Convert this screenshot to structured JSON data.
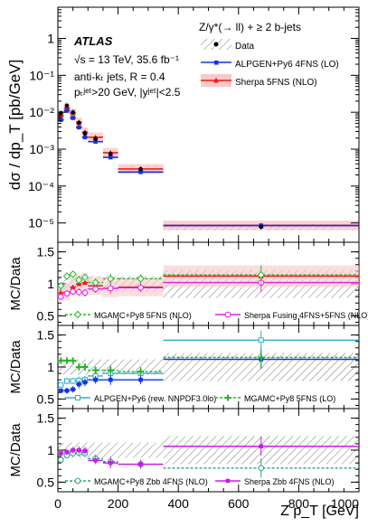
{
  "chart_data": [
    {
      "type": "scatter",
      "panel": "main",
      "ylabel": "dσ / dp_T [pb/GeV]",
      "yscale": "log",
      "ylim": [
        3e-06,
        7
      ],
      "xlim": [
        0,
        1000
      ],
      "yticks": [
        {
          "v": 1,
          "label": "1"
        },
        {
          "v": 0.1,
          "label": "10⁻¹"
        },
        {
          "v": 0.01,
          "label": "10⁻²"
        },
        {
          "v": 0.001,
          "label": "10⁻³"
        },
        {
          "v": 0.0001,
          "label": "10⁻⁴"
        },
        {
          "v": 1e-05,
          "label": "10⁻⁵"
        }
      ],
      "bins": [
        [
          0,
          20
        ],
        [
          20,
          40
        ],
        [
          40,
          60
        ],
        [
          60,
          80
        ],
        [
          80,
          100
        ],
        [
          100,
          150
        ],
        [
          150,
          200
        ],
        [
          200,
          350
        ],
        [
          350,
          1000
        ]
      ],
      "annotations": {
        "experiment": "ATLAS",
        "energy": "√s = 13 TeV, 35.6 fb⁻¹",
        "jets": "anti-kₜ jets, R = 0.4",
        "cuts": "pₜʲᵉᵗ>20 GeV, |yʲᵉᵗ|<2.5",
        "process": "Z/γ*(→ ll) + ≥ 2 b-jets"
      },
      "legend": [
        "Data",
        "ALPGEN+Py6 4FNS (LO)",
        "Sherpa 5FNS (NLO)"
      ],
      "series": [
        {
          "name": "Data",
          "values": [
            0.0095,
            0.015,
            0.01,
            0.0052,
            0.0027,
            0.0019,
            0.00075,
            0.00029,
            7.8e-06
          ]
        },
        {
          "name": "ALPGEN+Py6 4FNS (LO)",
          "values": [
            0.0062,
            0.011,
            0.007,
            0.0039,
            0.0021,
            0.0016,
            0.0006,
            0.00024,
            8.5e-06
          ]
        },
        {
          "name": "Sherpa 5FNS (NLO)",
          "values": [
            0.0082,
            0.013,
            0.0095,
            0.0053,
            0.0029,
            0.0021,
            0.0008,
            0.00029,
            8.6e-06
          ]
        }
      ],
      "colors": {
        "data": "#000000",
        "alpgen4": "#1432e6",
        "sherpa5": "#e61e1e",
        "sherpa5_band": "#f9c8c8"
      }
    },
    {
      "type": "scatter",
      "panel": "ratio1",
      "ylabel": "MC/Data",
      "ylim": [
        0.35,
        1.65
      ],
      "yticks": [
        0.5,
        1,
        1.5
      ],
      "legend": [
        "MGAMC+Py8 5FNS (NLO)",
        "Sherpa Fusing 4FNS+5FNS (NLO)"
      ],
      "series": [
        {
          "name": "MGAMC+Py8 5FNS (NLO)",
          "values": [
            0.97,
            1.12,
            1.15,
            1.06,
            1.1,
            1.02,
            1.08,
            1.08,
            1.14
          ]
        },
        {
          "name": "Sherpa Fusing 4FNS+5FNS (NLO)",
          "values": [
            0.8,
            0.85,
            0.88,
            0.87,
            0.86,
            0.92,
            0.93,
            0.94,
            1.02
          ]
        },
        {
          "name": "Sherpa 5FNS (NLO)",
          "values": [
            0.86,
            0.87,
            0.95,
            1.0,
            1.02,
            0.97,
            0.93,
            0.95,
            1.12
          ]
        }
      ],
      "colors": {
        "mgamc": "#28b428",
        "fusing": "#e61ee6",
        "sherpa5": "#e61e1e"
      }
    },
    {
      "type": "scatter",
      "panel": "ratio2",
      "ylabel": "MC/Data",
      "ylim": [
        0.35,
        1.65
      ],
      "yticks": [
        0.5,
        1,
        1.5
      ],
      "legend": [
        "ALPGEN+Py6 (rew. NNPDF3.0lo)",
        "MGAMC+Py8 5FNS (LO)"
      ],
      "series": [
        {
          "name": "ALPGEN+Py6 4FNS (LO)",
          "values": [
            0.63,
            0.63,
            0.65,
            0.73,
            0.76,
            0.8,
            0.8,
            0.8,
            1.12
          ]
        },
        {
          "name": "ALPGEN+Py6 (rew. NNPDF3.0lo)",
          "values": [
            0.72,
            0.78,
            0.78,
            0.79,
            0.8,
            0.86,
            0.9,
            0.9,
            1.42
          ]
        },
        {
          "name": "MGAMC+Py8 5FNS (LO)",
          "values": [
            1.1,
            1.1,
            1.1,
            1.0,
            1.0,
            0.95,
            0.95,
            0.93,
            1.15
          ]
        }
      ],
      "colors": {
        "alpgen4": "#1432e6",
        "alpgen_rew": "#28b4c8",
        "mgamc_lo": "#28b428"
      }
    },
    {
      "type": "scatter",
      "panel": "ratio3",
      "ylabel": "MC/Data",
      "xlabel": "Z p_T [GeV]",
      "xticks": [
        0,
        200,
        400,
        600,
        800,
        1000
      ],
      "ylim": [
        0.35,
        1.65
      ],
      "yticks": [
        0.5,
        1,
        1.5
      ],
      "legend": [
        "MGAMC+Py8 Zbb 4FNS (NLO)",
        "Sherpa Zbb 4FNS (NLO)"
      ],
      "series": [
        {
          "name": "MGAMC+Py8 Zbb 4FNS (NLO)",
          "values": [
            0.85,
            0.92,
            0.95,
            0.96,
            0.95,
            0.87,
            0.82,
            0.78,
            0.72
          ]
        },
        {
          "name": "Sherpa Zbb 4FNS (NLO)",
          "values": [
            0.95,
            0.97,
            1.0,
            1.0,
            0.99,
            0.84,
            0.8,
            0.78,
            1.06
          ]
        }
      ],
      "colors": {
        "mgamc_zbb": "#28a08c",
        "sherpa_zbb": "#c81ee6"
      }
    }
  ]
}
